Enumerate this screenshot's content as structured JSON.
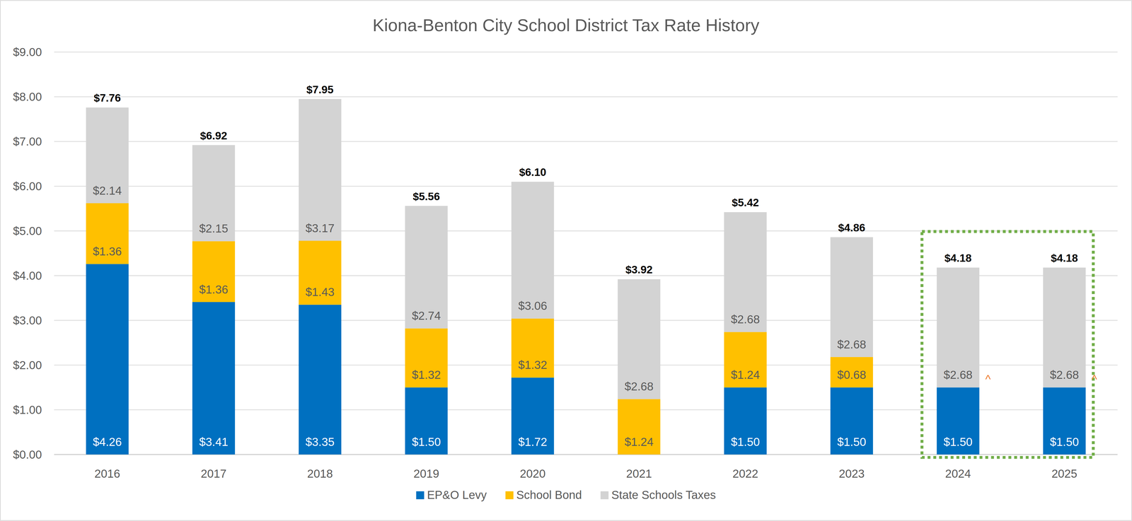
{
  "chart_data": {
    "type": "bar",
    "title": "Kiona-Benton City School District Tax Rate History",
    "categories": [
      "2016",
      "2017",
      "2018",
      "2019",
      "2020",
      "2021",
      "2022",
      "2023",
      "2024",
      "2025"
    ],
    "series": [
      {
        "name": "EP&O Levy",
        "color": "#0070c0",
        "values": [
          4.26,
          3.41,
          3.35,
          1.5,
          1.72,
          null,
          1.5,
          1.5,
          1.5,
          1.5
        ],
        "value_labels": [
          "$4.26",
          "$3.41",
          "$3.35",
          "$1.50",
          "$1.72",
          null,
          "$1.50",
          "$1.50",
          "$1.50",
          "$1.50"
        ]
      },
      {
        "name": "School Bond",
        "color": "#ffc000",
        "values": [
          1.36,
          1.36,
          1.43,
          1.32,
          1.32,
          1.24,
          1.24,
          0.68,
          null,
          null
        ],
        "value_labels": [
          "$1.36",
          "$1.36",
          "$1.43",
          "$1.32",
          "$1.32",
          "$1.24",
          "$1.24",
          "$0.68",
          null,
          null
        ]
      },
      {
        "name": "State Schools Taxes",
        "color": "#d3d3d3",
        "values": [
          2.14,
          2.15,
          3.17,
          2.74,
          3.06,
          2.68,
          2.68,
          2.68,
          2.68,
          2.68
        ],
        "value_labels": [
          "$2.14",
          "$2.15",
          "$3.17",
          "$2.74",
          "$3.06",
          "$2.68",
          "$2.68",
          "$2.68",
          "$2.68",
          "$2.68"
        ]
      }
    ],
    "totals": [
      7.76,
      6.92,
      7.95,
      5.56,
      6.1,
      3.92,
      5.42,
      4.86,
      4.18,
      4.18
    ],
    "total_labels": [
      "$7.76",
      "$6.92",
      "$7.95",
      "$5.56",
      "$6.10",
      "$3.92",
      "$5.42",
      "$4.86",
      "$4.18",
      "$4.18"
    ],
    "annotations": [
      {
        "category": "2024",
        "text": "^"
      },
      {
        "category": "2025",
        "text": "^"
      }
    ],
    "ylim": [
      0,
      9
    ],
    "yticks": [
      {
        "value": 0,
        "label": "$0.00"
      },
      {
        "value": 1,
        "label": "$1.00"
      },
      {
        "value": 2,
        "label": "$2.00"
      },
      {
        "value": 3,
        "label": "$3.00"
      },
      {
        "value": 4,
        "label": "$4.00"
      },
      {
        "value": 5,
        "label": "$5.00"
      },
      {
        "value": 6,
        "label": "$6.00"
      },
      {
        "value": 7,
        "label": "$7.00"
      },
      {
        "value": 8,
        "label": "$8.00"
      },
      {
        "value": 9,
        "label": "$9.00"
      }
    ],
    "stacked": true,
    "data_labels": true,
    "grid": true,
    "legend": "bottom"
  }
}
